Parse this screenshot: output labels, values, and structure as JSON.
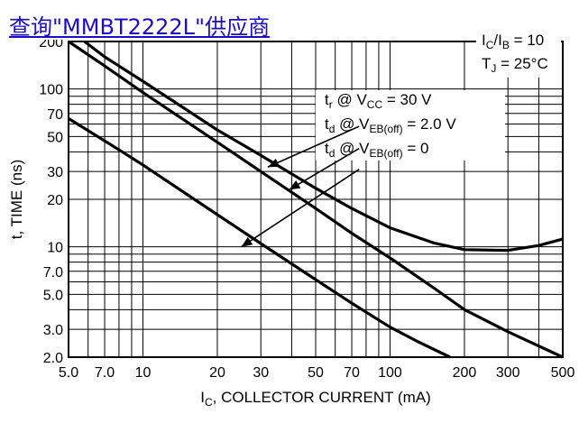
{
  "banner": {
    "link_text": "查询\"MMBT2222L\"供应商"
  },
  "chart_data": {
    "type": "line",
    "x_scale": "log",
    "y_scale": "log",
    "xlim": [
      5,
      500
    ],
    "ylim": [
      2,
      200
    ],
    "grid": true,
    "xlabel": {
      "main": "I",
      "sub": "C",
      "rest": ", COLLECTOR CURRENT (mA)"
    },
    "ylabel": "t, TIME (ns)",
    "x_ticks": [
      {
        "v": 5,
        "label": "5.0"
      },
      {
        "v": 7,
        "label": "7.0"
      },
      {
        "v": 10,
        "label": "10"
      },
      {
        "v": 20,
        "label": "20"
      },
      {
        "v": 30,
        "label": "30"
      },
      {
        "v": 50,
        "label": "50"
      },
      {
        "v": 70,
        "label": "70"
      },
      {
        "v": 100,
        "label": "100"
      },
      {
        "v": 200,
        "label": "200"
      },
      {
        "v": 300,
        "label": "300"
      },
      {
        "v": 500,
        "label": "500"
      }
    ],
    "y_ticks": [
      {
        "v": 2,
        "label": "2.0"
      },
      {
        "v": 3,
        "label": "3.0"
      },
      {
        "v": 5,
        "label": "5.0"
      },
      {
        "v": 7,
        "label": "7.0"
      },
      {
        "v": 10,
        "label": "10"
      },
      {
        "v": 20,
        "label": "20"
      },
      {
        "v": 30,
        "label": "30"
      },
      {
        "v": 50,
        "label": "50"
      },
      {
        "v": 70,
        "label": "70"
      },
      {
        "v": 100,
        "label": "100"
      },
      {
        "v": 200,
        "label": "200"
      }
    ],
    "conditions": [
      {
        "main": "I",
        "sub": "C",
        "rest": "/I",
        "sub2": "B",
        "tail": " = 10"
      },
      {
        "main": "T",
        "sub": "J",
        "rest": " = 25°C",
        "sub2": "",
        "tail": ""
      }
    ],
    "series": [
      {
        "label": {
          "main": "t",
          "sub": "r",
          "rest": " @ V",
          "sub2": "CC",
          "tail": " = 30 V"
        },
        "points": [
          [
            5.8,
            200
          ],
          [
            7,
            160
          ],
          [
            10,
            112
          ],
          [
            15,
            74
          ],
          [
            20,
            55
          ],
          [
            30,
            38
          ],
          [
            50,
            23.5
          ],
          [
            70,
            17.5
          ],
          [
            100,
            13.2
          ],
          [
            150,
            10.6
          ],
          [
            200,
            9.6
          ],
          [
            300,
            9.5
          ],
          [
            400,
            10.2
          ],
          [
            500,
            11.2
          ]
        ]
      },
      {
        "label": {
          "main": "t",
          "sub": "d",
          "rest": " @ V",
          "sub2": "EB(off)",
          "tail": " = 2.0 V"
        },
        "points": [
          [
            5,
            200
          ],
          [
            7,
            140
          ],
          [
            10,
            95
          ],
          [
            20,
            46
          ],
          [
            30,
            30
          ],
          [
            50,
            17.5
          ],
          [
            70,
            12.2
          ],
          [
            100,
            8.5
          ],
          [
            150,
            5.5
          ],
          [
            200,
            4.0
          ],
          [
            300,
            2.9
          ],
          [
            500,
            2.0
          ]
        ]
      },
      {
        "label": {
          "main": "t",
          "sub": "d",
          "rest": " @ V",
          "sub2": "EB(off)",
          "tail": " = 0"
        },
        "points": [
          [
            5,
            65
          ],
          [
            7,
            47
          ],
          [
            10,
            33
          ],
          [
            20,
            16
          ],
          [
            30,
            10.5
          ],
          [
            50,
            6.2
          ],
          [
            70,
            4.4
          ],
          [
            100,
            3.1
          ],
          [
            130,
            2.5
          ],
          [
            175,
            2.0
          ]
        ]
      }
    ],
    "arrows": [
      {
        "from": [
          75,
          58
        ],
        "to": [
          32,
          32
        ]
      },
      {
        "from": [
          75,
          42
        ],
        "to": [
          39,
          23
        ]
      },
      {
        "from": [
          75,
          31
        ],
        "to": [
          25,
          10
        ]
      }
    ]
  }
}
